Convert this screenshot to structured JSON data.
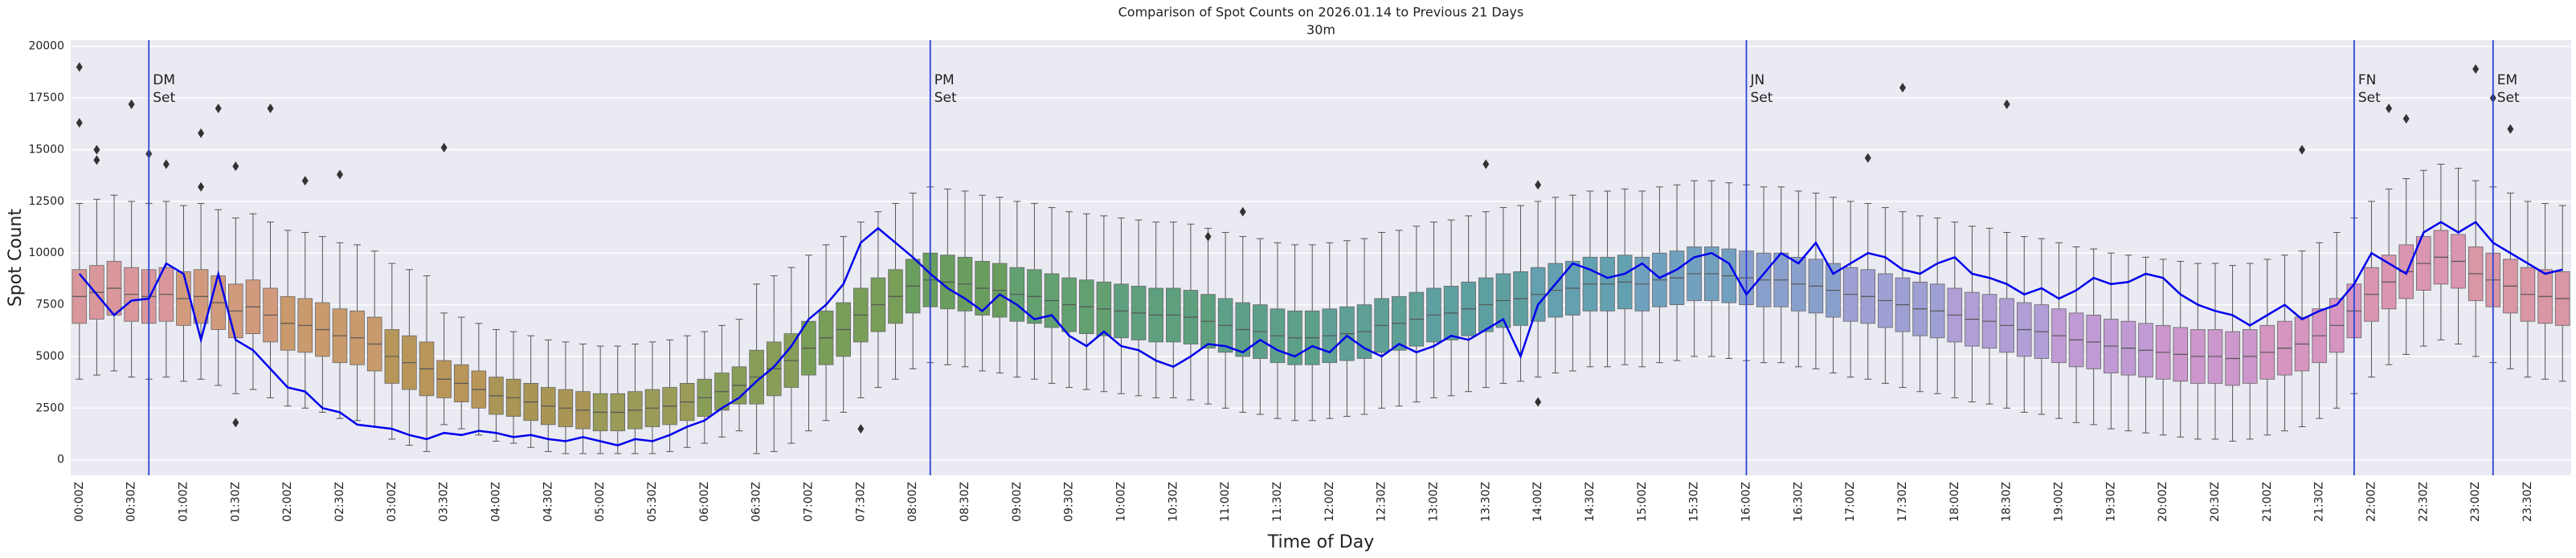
{
  "chart_data": {
    "type": "box",
    "title": "Comparison of Spot Counts on 2026.01.14 to Previous 21 Days",
    "subtitle": "30m",
    "xlabel": "Time of Day",
    "ylabel": "Spot Count",
    "categories": [
      "00:00Z",
      null,
      null,
      "00:30Z",
      null,
      null,
      "01:00Z",
      null,
      null,
      "01:30Z",
      null,
      null,
      "02:00Z",
      null,
      null,
      "02:30Z",
      null,
      null,
      "03:00Z",
      null,
      null,
      "03:30Z",
      null,
      null,
      "04:00Z",
      null,
      null,
      "04:30Z",
      null,
      null,
      "05:00Z",
      null,
      null,
      "05:30Z",
      null,
      null,
      "06:00Z",
      null,
      null,
      "06:30Z",
      null,
      null,
      "07:00Z",
      null,
      null,
      "07:30Z",
      null,
      null,
      "08:00Z",
      null,
      null,
      "08:30Z",
      null,
      null,
      "09:00Z",
      null,
      null,
      "09:30Z",
      null,
      null,
      "10:00Z",
      null,
      null,
      "10:30Z",
      null,
      null,
      "11:00Z",
      null,
      null,
      "11:30Z",
      null,
      null,
      "12:00Z",
      null,
      null,
      "12:30Z",
      null,
      null,
      "13:00Z",
      null,
      null,
      "13:30Z",
      null,
      null,
      "14:00Z",
      null,
      null,
      "14:30Z",
      null,
      null,
      "15:00Z",
      null,
      null,
      "15:30Z",
      null,
      null,
      "16:00Z",
      null,
      null,
      "16:30Z",
      null,
      null,
      "17:00Z",
      null,
      null,
      "17:30Z",
      null,
      null,
      "18:00Z",
      null,
      null,
      "18:30Z",
      null,
      null,
      "19:00Z",
      null,
      null,
      "19:30Z",
      null,
      null,
      "20:00Z",
      null,
      null,
      "20:30Z",
      null,
      null,
      "21:00Z",
      null,
      null,
      "21:30Z",
      null,
      null,
      "22:00Z",
      null,
      null,
      "22:30Z",
      null,
      null,
      "23:00Z",
      null,
      null,
      "23:30Z",
      null,
      null
    ],
    "median": [
      7900,
      8100,
      8300,
      8000,
      7900,
      8000,
      7800,
      7900,
      7600,
      7200,
      7400,
      7000,
      6600,
      6500,
      6300,
      6000,
      5900,
      5600,
      5000,
      4700,
      4400,
      3900,
      3700,
      3400,
      3100,
      3000,
      2800,
      2600,
      2500,
      2400,
      2300,
      2300,
      2400,
      2500,
      2600,
      2800,
      3000,
      3300,
      3600,
      4000,
      4400,
      4800,
      5400,
      5900,
      6300,
      7000,
      7500,
      7900,
      8400,
      8700,
      8600,
      8500,
      8300,
      8200,
      8000,
      7900,
      7700,
      7500,
      7400,
      7300,
      7200,
      7100,
      7000,
      7000,
      6900,
      6700,
      6500,
      6300,
      6200,
      6000,
      5900,
      5900,
      6000,
      6100,
      6200,
      6500,
      6600,
      6800,
      7000,
      7100,
      7300,
      7500,
      7700,
      7800,
      8000,
      8200,
      8300,
      8500,
      8500,
      8600,
      8500,
      8700,
      8800,
      9000,
      9000,
      8900,
      8800,
      8700,
      8700,
      8500,
      8400,
      8200,
      8000,
      7900,
      7700,
      7500,
      7300,
      7200,
      7000,
      6800,
      6700,
      6500,
      6300,
      6200,
      6000,
      5800,
      5700,
      5500,
      5400,
      5300,
      5200,
      5100,
      5000,
      5000,
      4900,
      5000,
      5200,
      5400,
      5600,
      6000,
      6500,
      7200,
      8000,
      8600,
      9100,
      9500,
      9800,
      9600,
      9000,
      8700,
      8400,
      8000,
      7900,
      7800
    ],
    "q1": [
      6600,
      6800,
      7000,
      6700,
      6600,
      6700,
      6500,
      6600,
      6300,
      5900,
      6100,
      5700,
      5300,
      5200,
      5000,
      4700,
      4600,
      4300,
      3700,
      3400,
      3100,
      3000,
      2800,
      2500,
      2200,
      2100,
      1900,
      1700,
      1600,
      1500,
      1400,
      1400,
      1500,
      1600,
      1700,
      1900,
      2100,
      2400,
      2700,
      2700,
      3100,
      3500,
      4100,
      4600,
      5000,
      5700,
      6200,
      6600,
      7100,
      7400,
      7300,
      7200,
      7000,
      6900,
      6700,
      6600,
      6400,
      6200,
      6100,
      6000,
      5900,
      5800,
      5700,
      5700,
      5600,
      5400,
      5200,
      5000,
      4900,
      4700,
      4600,
      4600,
      4700,
      4800,
      4900,
      5200,
      5300,
      5500,
      5700,
      5800,
      6000,
      6200,
      6400,
      6500,
      6700,
      6900,
      7000,
      7200,
      7200,
      7300,
      7200,
      7400,
      7500,
      7700,
      7700,
      7600,
      7500,
      7400,
      7400,
      7200,
      7100,
      6900,
      6700,
      6600,
      6400,
      6200,
      6000,
      5900,
      5700,
      5500,
      5400,
      5200,
      5000,
      4900,
      4700,
      4500,
      4400,
      4200,
      4100,
      4000,
      3900,
      3800,
      3700,
      3700,
      3600,
      3700,
      3900,
      4100,
      4300,
      4700,
      5200,
      5900,
      6700,
      7300,
      7800,
      8200,
      8500,
      8300,
      7700,
      7400,
      7100,
      6700,
      6600,
      6500
    ],
    "q3": [
      9200,
      9400,
      9600,
      9300,
      9200,
      9300,
      9100,
      9200,
      8900,
      8500,
      8700,
      8300,
      7900,
      7800,
      7600,
      7300,
      7200,
      6900,
      6300,
      6000,
      5700,
      4800,
      4600,
      4300,
      4000,
      3900,
      3700,
      3500,
      3400,
      3300,
      3200,
      3200,
      3300,
      3400,
      3500,
      3700,
      3900,
      4200,
      4500,
      5300,
      5700,
      6100,
      6700,
      7200,
      7600,
      8300,
      8800,
      9200,
      9700,
      10000,
      9900,
      9800,
      9600,
      9500,
      9300,
      9200,
      9000,
      8800,
      8700,
      8600,
      8500,
      8400,
      8300,
      8300,
      8200,
      8000,
      7800,
      7600,
      7500,
      7300,
      7200,
      7200,
      7300,
      7400,
      7500,
      7800,
      7900,
      8100,
      8300,
      8400,
      8600,
      8800,
      9000,
      9100,
      9300,
      9500,
      9600,
      9800,
      9800,
      9900,
      9800,
      10000,
      10100,
      10300,
      10300,
      10200,
      10100,
      10000,
      10000,
      9800,
      9700,
      9500,
      9300,
      9200,
      9000,
      8800,
      8600,
      8500,
      8300,
      8100,
      8000,
      7800,
      7600,
      7500,
      7300,
      7100,
      7000,
      6800,
      6700,
      6600,
      6500,
      6400,
      6300,
      6300,
      6200,
      6300,
      6500,
      6700,
      6900,
      7300,
      7800,
      8500,
      9300,
      9900,
      10400,
      10800,
      11100,
      10900,
      10300,
      10000,
      9700,
      9300,
      9200,
      9100
    ],
    "whislo": [
      3900,
      4100,
      4300,
      4000,
      3900,
      4000,
      3800,
      3900,
      3600,
      3200,
      3400,
      3000,
      2600,
      2500,
      2300,
      2000,
      1900,
      1600,
      1000,
      700,
      400,
      1700,
      1500,
      1200,
      900,
      800,
      600,
      400,
      300,
      300,
      300,
      300,
      300,
      300,
      400,
      600,
      800,
      1100,
      1400,
      300,
      400,
      800,
      1400,
      1900,
      2300,
      3000,
      3500,
      3900,
      4400,
      4700,
      4600,
      4500,
      4300,
      4200,
      4000,
      3900,
      3700,
      3500,
      3400,
      3300,
      3200,
      3100,
      3000,
      3000,
      2900,
      2700,
      2500,
      2300,
      2200,
      2000,
      1900,
      1900,
      2000,
      2100,
      2200,
      2500,
      2600,
      2800,
      3000,
      3100,
      3300,
      3500,
      3700,
      3800,
      4000,
      4200,
      4300,
      4500,
      4500,
      4600,
      4500,
      4700,
      4800,
      5000,
      5000,
      4900,
      4800,
      4700,
      4700,
      4500,
      4400,
      4200,
      4000,
      3900,
      3700,
      3500,
      3300,
      3200,
      3000,
      2800,
      2700,
      2500,
      2300,
      2200,
      2000,
      1800,
      1700,
      1500,
      1400,
      1300,
      1200,
      1100,
      1000,
      1000,
      900,
      1000,
      1200,
      1400,
      1600,
      2000,
      2500,
      3200,
      4000,
      4600,
      5100,
      5500,
      5800,
      5600,
      5000,
      4700,
      4400,
      4000,
      3900,
      3800
    ],
    "whishi": [
      12400,
      12600,
      12800,
      12500,
      12400,
      12500,
      12300,
      12400,
      12100,
      11700,
      11900,
      11500,
      11100,
      11000,
      10800,
      10500,
      10400,
      10100,
      9500,
      9200,
      8900,
      7100,
      6900,
      6600,
      6300,
      6200,
      6000,
      5800,
      5700,
      5600,
      5500,
      5500,
      5600,
      5700,
      5800,
      6000,
      6200,
      6500,
      6800,
      8500,
      8900,
      9300,
      9900,
      10400,
      10800,
      11500,
      12000,
      12400,
      12900,
      13200,
      13100,
      13000,
      12800,
      12700,
      12500,
      12400,
      12200,
      12000,
      11900,
      11800,
      11700,
      11600,
      11500,
      11500,
      11400,
      11200,
      11000,
      10800,
      10700,
      10500,
      10400,
      10400,
      10500,
      10600,
      10700,
      11000,
      11100,
      11300,
      11500,
      11600,
      11800,
      12000,
      12200,
      12300,
      12500,
      12700,
      12800,
      13000,
      13000,
      13100,
      13000,
      13200,
      13300,
      13500,
      13500,
      13400,
      13300,
      13200,
      13200,
      13000,
      12900,
      12700,
      12500,
      12400,
      12200,
      12000,
      11800,
      11700,
      11500,
      11300,
      11200,
      11000,
      10800,
      10700,
      10500,
      10300,
      10200,
      10000,
      9900,
      9800,
      9700,
      9600,
      9500,
      9500,
      9400,
      9500,
      9700,
      9900,
      10100,
      10500,
      11000,
      11700,
      12500,
      13100,
      13600,
      14000,
      14300,
      14100,
      13500,
      13200,
      12900,
      12500,
      12400,
      12300
    ],
    "colors": [
      "#d9979b",
      "#d19a7c",
      "#c99a6c",
      "#b8965a",
      "#a99555",
      "#9a9b58",
      "#889e58",
      "#789e58",
      "#6a9e5e",
      "#62a070",
      "#5ea07e",
      "#5da08a",
      "#5ea096",
      "#5ea0a2",
      "#63a0b0",
      "#72a0bf",
      "#8aa0cc",
      "#9ea0d4",
      "#b09ed6",
      "#c09ad4",
      "#cc97cc",
      "#d595c0",
      "#da95b0",
      "#d996a4"
    ],
    "fliers": {
      "x": [
        0,
        0,
        1,
        1,
        3,
        4,
        5,
        7,
        7,
        8,
        9,
        9,
        11,
        13,
        15,
        21,
        45,
        65,
        67,
        81,
        84,
        84,
        103,
        105,
        111,
        128,
        133,
        134,
        138,
        139,
        140
      ],
      "y": [
        19000,
        16300,
        15000,
        14500,
        17200,
        14800,
        14300,
        15800,
        13200,
        17000,
        14200,
        1800,
        17000,
        13500,
        13800,
        15100,
        1500,
        10800,
        12000,
        14300,
        13300,
        2800,
        14600,
        18000,
        17200,
        15000,
        17000,
        16500,
        18900,
        17500,
        16000
      ]
    },
    "line": {
      "color": "#0000ee",
      "values": [
        9000,
        8000,
        7000,
        7700,
        7800,
        9500,
        9000,
        5800,
        9000,
        5800,
        5300,
        4400,
        3500,
        3300,
        2500,
        2300,
        1700,
        1600,
        1500,
        1200,
        1000,
        1300,
        1200,
        1400,
        1300,
        1100,
        1200,
        1000,
        900,
        1100,
        900,
        700,
        1000,
        900,
        1200,
        1600,
        1900,
        2500,
        3000,
        3800,
        4500,
        5500,
        6800,
        7500,
        8500,
        10500,
        11200,
        10500,
        9800,
        9000,
        8300,
        7800,
        7200,
        8000,
        7500,
        6800,
        7000,
        6000,
        5500,
        6200,
        5500,
        5300,
        4800,
        4500,
        5000,
        5600,
        5500,
        5200,
        5800,
        5300,
        5000,
        5500,
        5200,
        6000,
        5400,
        5000,
        5600,
        5200,
        5500,
        6000,
        5800,
        6300,
        6800,
        5000,
        7500,
        8500,
        9500,
        9200,
        8800,
        9000,
        9500,
        8800,
        9200,
        9800,
        10000,
        9500,
        8000,
        9000,
        10000,
        9500,
        10500,
        9000,
        9500,
        10000,
        9800,
        9200,
        9000,
        9500,
        9800,
        9000,
        8800,
        8500,
        8000,
        8300,
        7800,
        8200,
        8800,
        8500,
        8600,
        9000,
        8800,
        8000,
        7500,
        7200,
        7000,
        6500,
        7000,
        7500,
        6800,
        7200,
        7500,
        8500,
        10000,
        9500,
        9000,
        11000,
        11500,
        11000,
        11500,
        10500,
        10000,
        9500,
        9000,
        9200
      ]
    },
    "annotations": [
      {
        "x": 4,
        "lines": [
          "DM",
          "Set"
        ]
      },
      {
        "x": 49,
        "lines": [
          "PM",
          "Set"
        ]
      },
      {
        "x": 96,
        "lines": [
          "JN",
          "Set"
        ]
      },
      {
        "x": 131,
        "lines": [
          "FN",
          "Set"
        ]
      },
      {
        "x": 139,
        "lines": [
          "EM",
          "Set"
        ]
      }
    ],
    "vline_color": "#2b44d6",
    "ylim": [
      -750,
      20300
    ],
    "yticks": [
      0,
      2500,
      5000,
      7500,
      10000,
      12500,
      15000,
      17500,
      20000
    ],
    "grid": true
  }
}
